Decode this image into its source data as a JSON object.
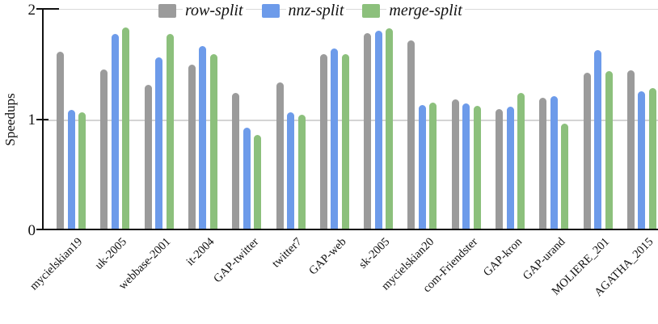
{
  "chart_data": {
    "type": "bar",
    "title": "",
    "xlabel": "",
    "ylabel": "Speedups",
    "ylim": [
      0,
      2
    ],
    "yticks": [
      0,
      1,
      2
    ],
    "grid": "horizontal",
    "gridlines_at": [
      1,
      2
    ],
    "legend_position": "top-center",
    "legend_style": "italic",
    "categories": [
      "mycielskian19",
      "uk-2005",
      "webbase-2001",
      "it-2004",
      "GAP-twitter",
      "twitter7",
      "GAP-web",
      "sk-2005",
      "mycielskian20",
      "com-Friendster",
      "GAP-kron",
      "GAP-urand",
      "MOLIERE_201",
      "AGATHA_2015"
    ],
    "series": [
      {
        "name": "row-split",
        "color": "#9b9b9b",
        "values": [
          1.6,
          1.44,
          1.3,
          1.48,
          1.23,
          1.32,
          1.58,
          1.77,
          1.7,
          1.17,
          1.08,
          1.18,
          1.41,
          1.43
        ]
      },
      {
        "name": "nnz-split",
        "color": "#6d9bea",
        "values": [
          1.07,
          1.76,
          1.55,
          1.65,
          0.91,
          1.05,
          1.63,
          1.79,
          1.12,
          1.13,
          1.1,
          1.2,
          1.61,
          1.24
        ]
      },
      {
        "name": "merge-split",
        "color": "#8cc07c",
        "values": [
          1.05,
          1.82,
          1.76,
          1.58,
          0.85,
          1.03,
          1.58,
          1.81,
          1.14,
          1.11,
          1.23,
          0.95,
          1.42,
          1.27
        ]
      }
    ]
  },
  "colors": {
    "axis": "#111111",
    "gridline": "#d4d4d4",
    "background": "#ffffff"
  }
}
